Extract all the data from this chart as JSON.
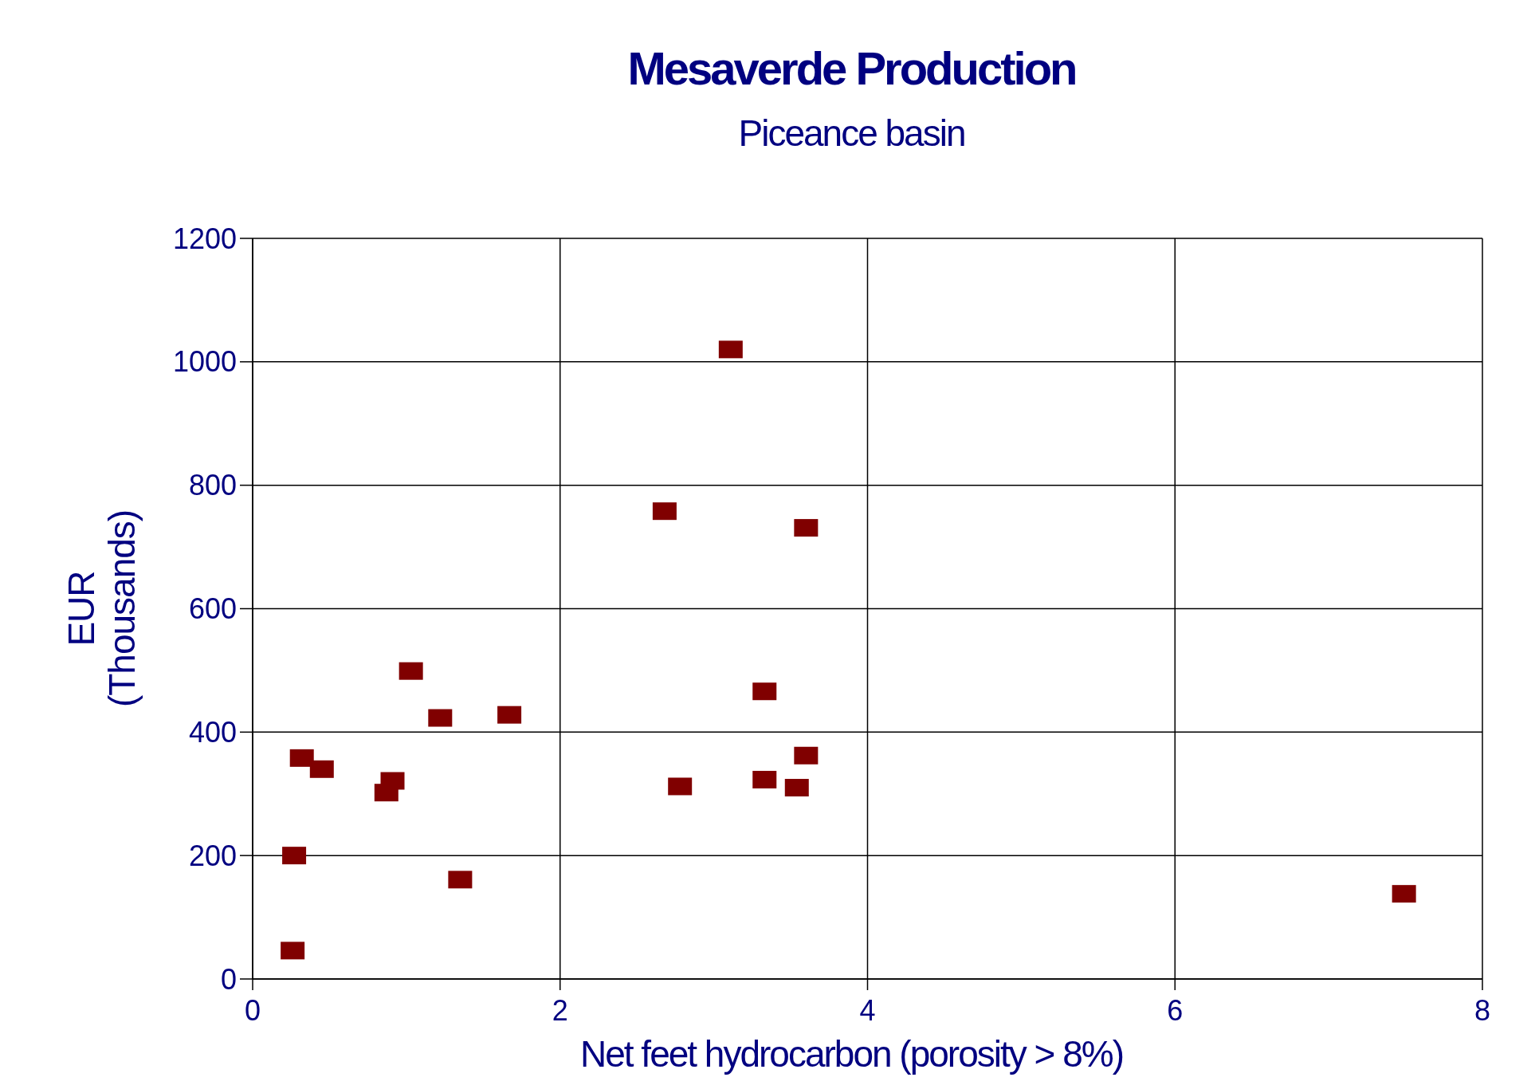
{
  "chart_data": {
    "type": "scatter",
    "title": "Mesaverde Production",
    "subtitle": "Piceance basin",
    "xlabel": "Net feet hydrocarbon (porosity > 8%)",
    "ylabel": "EUR\n(Thousands)",
    "x": [
      3.11,
      2.68,
      3.6,
      1.03,
      3.33,
      1.22,
      1.67,
      0.32,
      0.45,
      3.6,
      0.91,
      0.87,
      2.78,
      3.33,
      3.54,
      0.27,
      1.35,
      0.26,
      7.49
    ],
    "series": [
      {
        "color": "#800000",
        "values": [
          1020,
          758,
          731,
          499,
          466,
          423,
          428,
          358,
          340,
          362,
          321,
          302,
          312,
          323,
          310,
          200,
          161,
          46,
          138
        ]
      }
    ],
    "xlim": [
      0,
      8
    ],
    "ylim": [
      0,
      1200
    ],
    "xticks": [
      0,
      2,
      4,
      6,
      8
    ],
    "yticks": [
      0,
      200,
      400,
      600,
      800,
      1000,
      1200
    ],
    "grid": true,
    "marker": "square"
  }
}
